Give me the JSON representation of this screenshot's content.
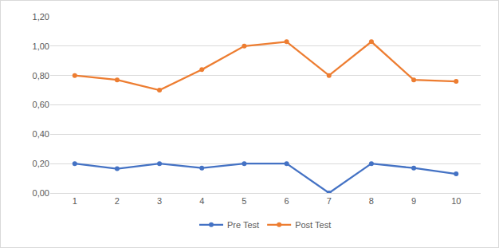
{
  "chart_data": {
    "type": "line",
    "categories": [
      "1",
      "2",
      "3",
      "4",
      "5",
      "6",
      "7",
      "8",
      "9",
      "10"
    ],
    "series": [
      {
        "name": "Pre Test",
        "color": "#4472c4",
        "marker": "circle",
        "line_style": "solid",
        "values": [
          0.2,
          0.165,
          0.2,
          0.17,
          0.2,
          0.2,
          0.0,
          0.2,
          0.17,
          0.13
        ]
      },
      {
        "name": "Post Test",
        "color": "#ed7d31",
        "marker": "circle",
        "line_style": "solid",
        "values": [
          0.8,
          0.77,
          0.7,
          0.84,
          1.0,
          1.03,
          0.8,
          1.03,
          0.77,
          0.76
        ]
      }
    ],
    "ylim": [
      0,
      1.2
    ],
    "yticks": [
      {
        "value": 0,
        "label": "0,00"
      },
      {
        "value": 0.2,
        "label": "0,20"
      },
      {
        "value": 0.4,
        "label": "0,40"
      },
      {
        "value": 0.6,
        "label": "0,60"
      },
      {
        "value": 0.8,
        "label": "0,80"
      },
      {
        "value": 1.0,
        "label": "1,00"
      },
      {
        "value": 1.2,
        "label": "1,20"
      }
    ],
    "grid": true,
    "legend": "bottom"
  }
}
